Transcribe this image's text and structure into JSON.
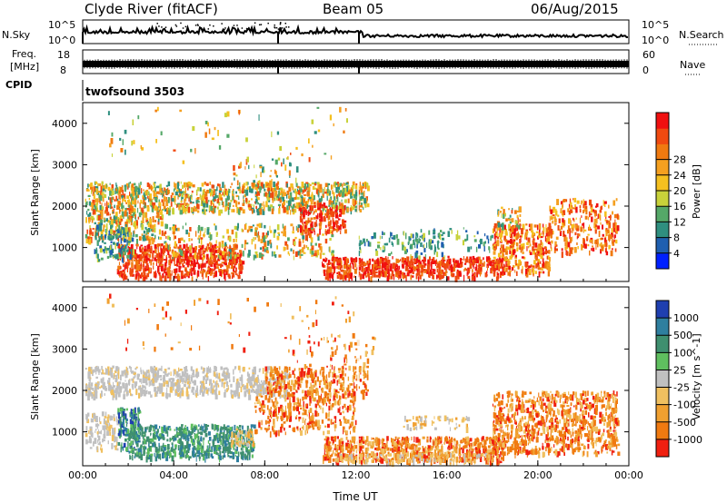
{
  "header": {
    "station": "Clyde River (fitACF)",
    "beam": "Beam 05",
    "date": "06/Aug/2015"
  },
  "strips": {
    "nsky_label": "N.Sky",
    "nsky_ticks": [
      "10^5",
      "10^0"
    ],
    "nsearch_label": "N.Search",
    "freq_label_line1": "Freq.",
    "freq_label_line2": "[MHz]",
    "freq_ticks": [
      "18",
      "8"
    ],
    "nave_label": "Nave",
    "nave_ticks": [
      "60",
      "0"
    ],
    "cpid_label": "CPID",
    "cpid_value": "twofsound 3503"
  },
  "colors": {
    "power": [
      "#0020ff",
      "#1f5fb0",
      "#2f8f7f",
      "#55a868",
      "#c8d23a",
      "#f5c020",
      "#f5a020",
      "#f07a10",
      "#f04a10",
      "#f01010"
    ],
    "velocity": [
      "#1f3fb0",
      "#2f7f9f",
      "#3f8f6f",
      "#5fbf5f",
      "#c0c0c0",
      "#f0c060",
      "#f0a030",
      "#f07a10",
      "#f02010"
    ]
  },
  "chart_data": [
    {
      "type": "heatmap",
      "name": "power",
      "xlabel": "",
      "ylabel": "Slant Range [km]",
      "x_ticks": [
        "00:00",
        "04:00",
        "08:00",
        "12:00",
        "16:00",
        "20:00",
        "00:00"
      ],
      "xlim_hours": [
        0,
        24
      ],
      "y_ticks": [
        1000,
        2000,
        3000,
        4000
      ],
      "ylim": [
        180,
        4500
      ],
      "colorbar_label": "Power [dB]",
      "colorbar_ticks": [
        4,
        8,
        12,
        16,
        20,
        24,
        28
      ],
      "colorbar_range": [
        0,
        30
      ]
    },
    {
      "type": "heatmap",
      "name": "velocity",
      "xlabel": "Time UT",
      "ylabel": "Slant Range [km]",
      "x_ticks": [
        "00:00",
        "04:00",
        "08:00",
        "12:00",
        "16:00",
        "20:00",
        "00:00"
      ],
      "xlim_hours": [
        0,
        24
      ],
      "y_ticks": [
        1000,
        2000,
        3000,
        4000
      ],
      "ylim": [
        180,
        4500
      ],
      "colorbar_label": "Velocity [m s^-1]",
      "colorbar_ticks": [
        "1000",
        "500",
        "100",
        "25",
        "-25",
        "-100",
        "-500",
        "-1000"
      ]
    }
  ]
}
